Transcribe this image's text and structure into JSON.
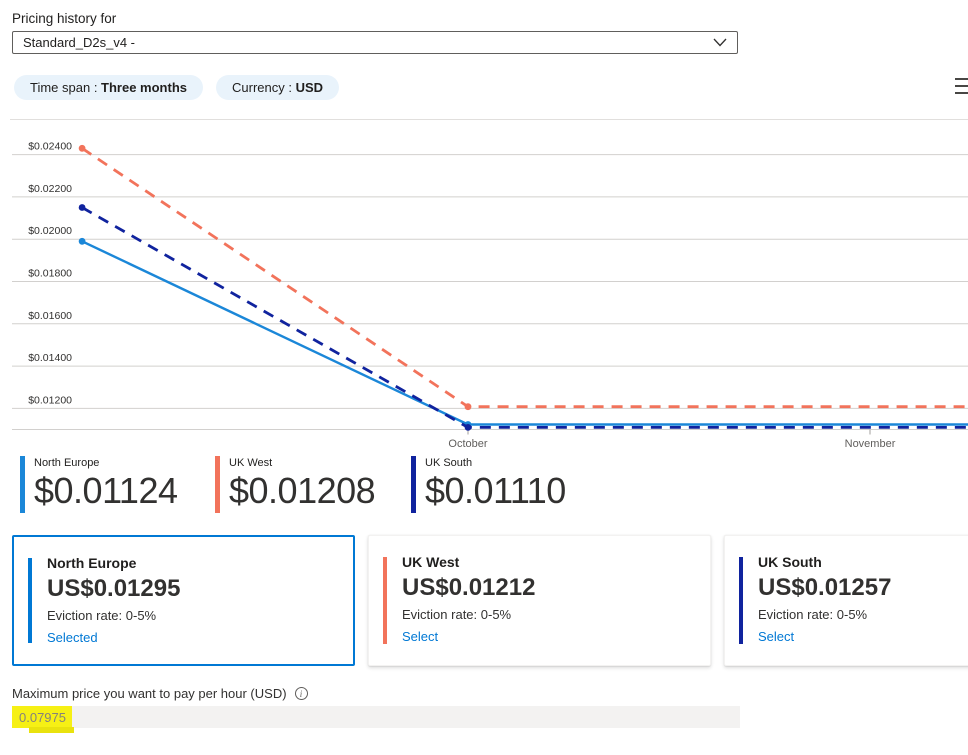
{
  "header": {
    "title_label": "Pricing history for",
    "vm_dropdown_value": "Standard_D2s_v4 -"
  },
  "filters": {
    "time_span_label": "Time span : ",
    "time_span_value": "Three months",
    "currency_label": "Currency : ",
    "currency_value": "USD"
  },
  "chart_data": {
    "type": "line",
    "description": "Spot VM price history over three months",
    "grid": true,
    "grid_color": "#d2d0ce",
    "axis_color": "#d2d0ce",
    "tick_color": "#a19f9d",
    "ylabel_color": "#323130",
    "xlabel_color": "#605e5c",
    "y_ticks": [
      {
        "label": "$0.02400",
        "value": 0.024
      },
      {
        "label": "$0.02200",
        "value": 0.022
      },
      {
        "label": "$0.02000",
        "value": 0.02
      },
      {
        "label": "$0.01800",
        "value": 0.018
      },
      {
        "label": "$0.01600",
        "value": 0.016
      },
      {
        "label": "$0.01400",
        "value": 0.014
      },
      {
        "label": "$0.01200",
        "value": 0.012
      }
    ],
    "x_ticks": [
      {
        "label": "October",
        "m": 0
      },
      {
        "label": "November",
        "m": 1
      }
    ],
    "x_range_months": [
      -0.96,
      1.244
    ],
    "ylim": [
      0.0109,
      0.0257
    ],
    "series": [
      {
        "name": "North Europe",
        "color": "#1b87d8",
        "dash": "solid",
        "points": [
          {
            "m": -0.96,
            "value": 0.0199
          },
          {
            "m": 0,
            "value": 0.01124
          },
          {
            "m": 1.244,
            "value": 0.01124
          }
        ]
      },
      {
        "name": "UK West",
        "color": "#f2735b",
        "dash": "dashed",
        "points": [
          {
            "m": -0.96,
            "value": 0.0243
          },
          {
            "m": 0,
            "value": 0.01208
          },
          {
            "m": 1.244,
            "value": 0.01208
          }
        ]
      },
      {
        "name": "UK South",
        "color": "#10239e",
        "dash": "dashed",
        "points": [
          {
            "m": -0.96,
            "value": 0.0215
          },
          {
            "m": 0,
            "value": 0.0111
          },
          {
            "m": 1.244,
            "value": 0.0111
          }
        ]
      }
    ],
    "legend_position": "bottom"
  },
  "legend": [
    {
      "region": "North Europe",
      "value": "$0.01124",
      "color": "#1b87d8"
    },
    {
      "region": "UK West",
      "value": "$0.01208",
      "color": "#f2735b"
    },
    {
      "region": "UK South",
      "value": "$0.01110",
      "color": "#10239e"
    }
  ],
  "region_cards": [
    {
      "region": "North Europe",
      "price": "US$0.01295",
      "eviction": "Eviction rate: 0-5%",
      "action": "Selected",
      "accent": "#0078d4",
      "selected": true
    },
    {
      "region": "UK West",
      "price": "US$0.01212",
      "eviction": "Eviction rate: 0-5%",
      "action": "Select",
      "accent": "#f2735b",
      "selected": false
    },
    {
      "region": "UK South",
      "price": "US$0.01257",
      "eviction": "Eviction rate: 0-5%",
      "action": "Select",
      "accent": "#10239e",
      "selected": false
    }
  ],
  "max_price": {
    "label": "Maximum price you want to pay per hour (USD)",
    "value": "0.07975",
    "highlight_color": "#f6f015",
    "highlight_tail_color": "#e9e20e"
  },
  "colors": {
    "link": "#0078d4",
    "selected_border": "#0078d4",
    "pill_bg": "#e9f3fb",
    "input_bg": "#f3f2f1"
  }
}
